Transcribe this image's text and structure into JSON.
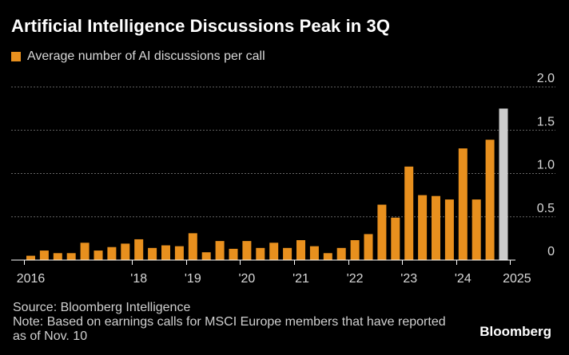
{
  "title": "Artificial Intelligence Discussions Peak in 3Q",
  "legend": {
    "label": "Average number of AI discussions per call",
    "color": "#e8901e"
  },
  "chart_data": {
    "type": "bar",
    "title": "Artificial Intelligence Discussions Peak in 3Q",
    "xlabel": "",
    "ylabel": "",
    "ylim": [
      0,
      2.0
    ],
    "y_ticks": [
      {
        "value": 0,
        "label": "0"
      },
      {
        "value": 0.5,
        "label": "0.5"
      },
      {
        "value": 1.0,
        "label": "1.0"
      },
      {
        "value": 1.5,
        "label": "1.5"
      },
      {
        "value": 2.0,
        "label": "2.0"
      }
    ],
    "y_axis_side": "right",
    "grid": true,
    "x_tick_labels": [
      {
        "label": "2016",
        "index": 0
      },
      {
        "label": "'18",
        "index": 8
      },
      {
        "label": "'19",
        "index": 12
      },
      {
        "label": "'20",
        "index": 16
      },
      {
        "label": "'21",
        "index": 20
      },
      {
        "label": "'22",
        "index": 24
      },
      {
        "label": "'23",
        "index": 28
      },
      {
        "label": "'24",
        "index": 32
      },
      {
        "label": "2025",
        "index": 36
      }
    ],
    "series": [
      {
        "name": "Average number of AI discussions per call",
        "color": "#e8901e",
        "highlight_color": "#cccccc",
        "highlight_index": 39,
        "values": [
          0.05,
          0.11,
          0.08,
          0.08,
          0.2,
          0.11,
          0.15,
          0.19,
          0.24,
          0.14,
          0.17,
          0.16,
          0.31,
          0.09,
          0.22,
          0.13,
          0.22,
          0.14,
          0.2,
          0.14,
          0.23,
          0.16,
          0.08,
          0.14,
          0.23,
          0.3,
          0.64,
          0.49,
          1.08,
          0.75,
          0.74,
          0.7,
          1.29,
          0.7,
          1.39,
          1.75
        ]
      }
    ]
  },
  "footer": {
    "source": "Source: Bloomberg Intelligence",
    "note_line1": "Note: Based on earnings calls for MSCI Europe members that have reported",
    "note_line2": "as of Nov. 10"
  },
  "brand": "Bloomberg"
}
